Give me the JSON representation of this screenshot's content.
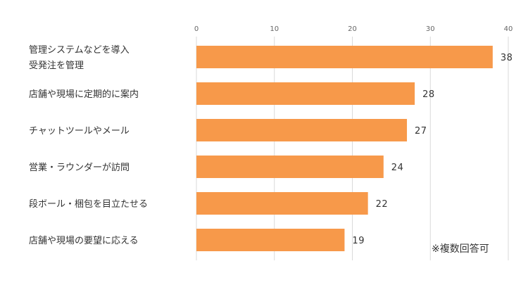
{
  "chart_data": {
    "type": "bar",
    "orientation": "horizontal",
    "categories": [
      [
        "管理システムなどを導入",
        "受発注を管理"
      ],
      [
        "店舗や現場に定期的に案内"
      ],
      [
        "チャットツールやメール"
      ],
      [
        "営業・ラウンダーが訪問"
      ],
      [
        "段ボール・梱包を目立たせる"
      ],
      [
        "店舗や現場の要望に応える"
      ]
    ],
    "values": [
      38,
      28,
      27,
      24,
      22,
      19
    ],
    "xlim": [
      0,
      40
    ],
    "xticks": [
      "0",
      "10",
      "20",
      "30",
      "40"
    ],
    "grid": true,
    "bar_color": "#F7994A",
    "grid_color": "#d9d9d9",
    "title": "",
    "xlabel": "",
    "ylabel": ""
  },
  "footnote": "※複数回答可"
}
